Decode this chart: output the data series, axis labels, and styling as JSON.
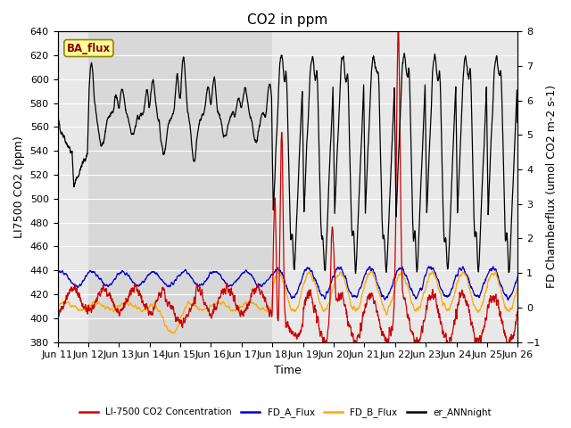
{
  "title": "CO2 in ppm",
  "ylabel_left": "LI7500 CO2 (ppm)",
  "ylabel_right": "FD Chamberflux (umol CO2 m-2 s-1)",
  "xlabel": "Time",
  "ylim_left": [
    380,
    640
  ],
  "ylim_right": [
    -1.0,
    8.0
  ],
  "xlim": [
    0,
    15
  ],
  "xtick_labels": [
    "Jun 11",
    "Jun 12",
    "Jun 13",
    "Jun 14",
    "Jun 15",
    "Jun 16",
    "Jun 17",
    "Jun 18",
    "Jun 19",
    "Jun 20",
    "Jun 21",
    "Jun 22",
    "Jun 23",
    "Jun 24",
    "Jun 25",
    "Jun 26"
  ],
  "xtick_positions": [
    0,
    1,
    2,
    3,
    4,
    5,
    6,
    7,
    8,
    9,
    10,
    11,
    12,
    13,
    14,
    15
  ],
  "color_red": "#cc0000",
  "color_blue": "#0000cc",
  "color_orange": "#ffaa00",
  "color_black": "#000000",
  "ba_flux_label": "BA_flux",
  "legend_labels": [
    "LI-7500 CO2 Concentration",
    "FD_A_Flux",
    "FD_B_Flux",
    "er_ANNnight"
  ],
  "shaded_xmin": 1,
  "shaded_xmax": 7,
  "shaded_color": "#d8d8d8",
  "bg_color": "#e8e8e8",
  "grid_color": "#ffffff",
  "title_fontsize": 11,
  "tick_fontsize": 8,
  "label_fontsize": 9,
  "yticks_left": [
    380,
    400,
    420,
    440,
    460,
    480,
    500,
    520,
    540,
    560,
    580,
    600,
    620,
    640
  ],
  "yticks_right": [
    -1.0,
    0.0,
    1.0,
    2.0,
    3.0,
    4.0,
    5.0,
    6.0,
    7.0,
    8.0
  ]
}
